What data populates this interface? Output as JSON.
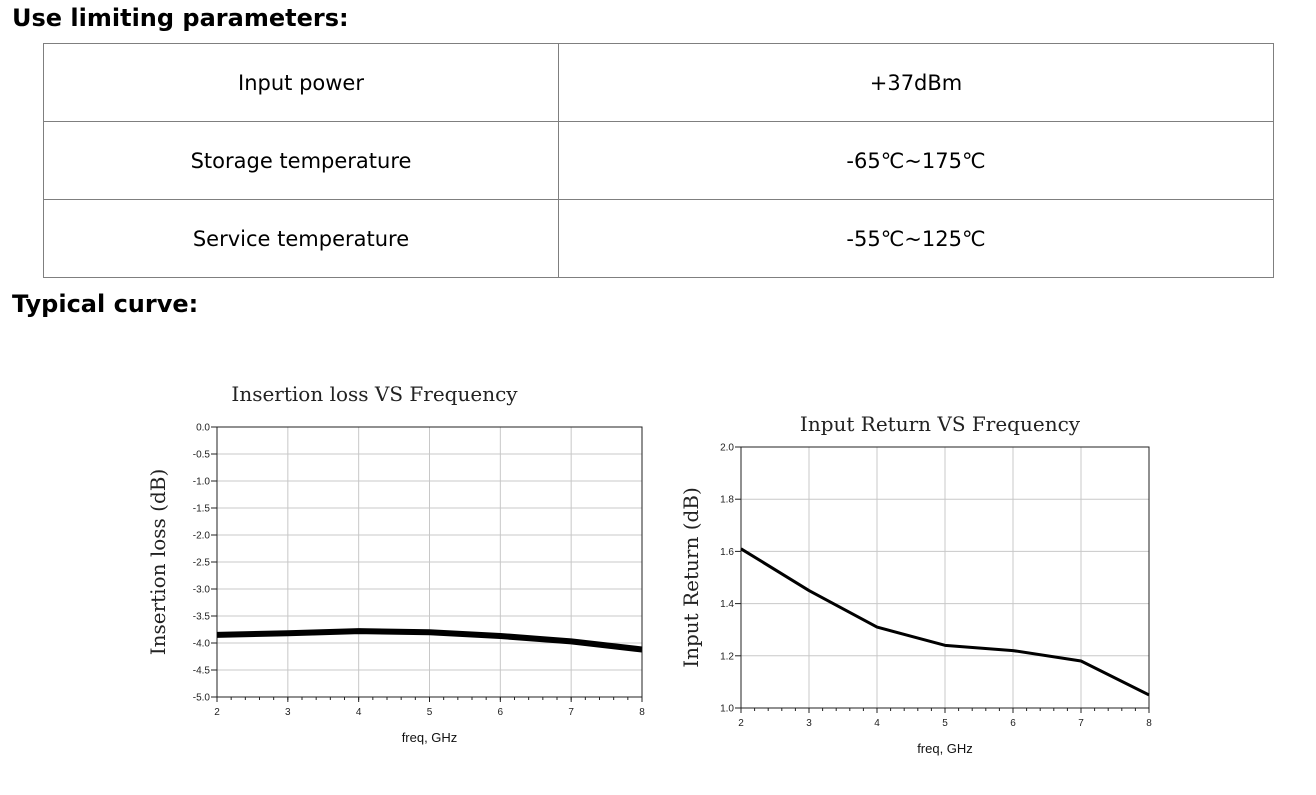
{
  "sections": {
    "limiting_title": "Use limiting parameters:",
    "curve_title": "Typical curve:"
  },
  "params_table": [
    {
      "name": "Input power",
      "value": "+37dBm"
    },
    {
      "name": "Storage temperature",
      "value": "-65℃~175℃"
    },
    {
      "name": "Service temperature",
      "value": "-55℃~125℃"
    }
  ],
  "chart_data": [
    {
      "type": "line",
      "title": "Insertion loss VS Frequency",
      "xlabel": "freq, GHz",
      "ylabel": "Insertion loss (dB)",
      "xlim": [
        2,
        8
      ],
      "ylim": [
        -5.0,
        0.0
      ],
      "xticks": [
        "2",
        "3",
        "4",
        "5",
        "6",
        "7",
        "8"
      ],
      "yticks": [
        "0.0",
        "-0.5",
        "-1.0",
        "-1.5",
        "-2.0",
        "-2.5",
        "-3.0",
        "-3.5",
        "-4.0",
        "-4.5",
        "-5.0"
      ],
      "grid": true,
      "series": [
        {
          "x": [
            2,
            3,
            4,
            5,
            6,
            7,
            8
          ],
          "y": [
            -3.85,
            -3.82,
            -3.78,
            -3.8,
            -3.87,
            -3.97,
            -4.12
          ],
          "color": "#000000"
        }
      ]
    },
    {
      "type": "line",
      "title": "Input Return VS Frequency",
      "xlabel": "freq, GHz",
      "ylabel": "Input Return (dB)",
      "xlim": [
        2,
        8
      ],
      "ylim": [
        1.0,
        2.0
      ],
      "xticks": [
        "2",
        "3",
        "4",
        "5",
        "6",
        "7",
        "8"
      ],
      "yticks": [
        "2.0",
        "1.8",
        "1.6",
        "1.4",
        "1.2",
        "1.0"
      ],
      "grid": true,
      "series": [
        {
          "x": [
            2,
            3,
            4,
            5,
            6,
            7,
            8
          ],
          "y": [
            1.61,
            1.45,
            1.31,
            1.24,
            1.22,
            1.18,
            1.05
          ],
          "color": "#000000"
        }
      ]
    }
  ]
}
